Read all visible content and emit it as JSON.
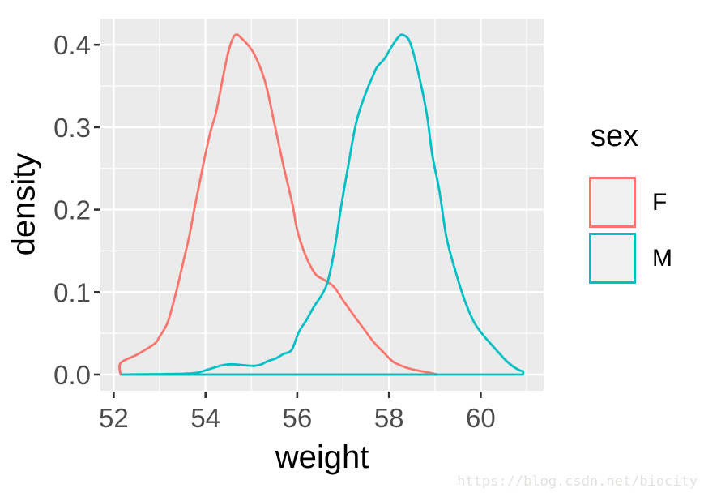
{
  "chart_data": {
    "type": "line",
    "subtype": "density-curves",
    "title": "",
    "x_axis": {
      "label": "weight",
      "tick_labels": [
        "52",
        "54",
        "56",
        "58",
        "60"
      ],
      "tick_values": [
        52,
        54,
        56,
        58,
        60
      ],
      "minor_ticks": [
        53,
        55,
        57,
        59,
        61
      ],
      "range": [
        51.71,
        61.37
      ]
    },
    "y_axis": {
      "label": "density",
      "tick_labels": [
        "0.0",
        "0.1",
        "0.2",
        "0.3",
        "0.4"
      ],
      "tick_values": [
        0,
        0.1,
        0.2,
        0.3,
        0.4
      ],
      "minor_ticks": [
        0.05,
        0.15,
        0.25,
        0.35
      ],
      "range": [
        -0.0197,
        0.4317
      ]
    },
    "legend": {
      "title": "sex",
      "position": "right",
      "entries": [
        {
          "label": "F",
          "color": "#F8766D"
        },
        {
          "label": "M",
          "color": "#00BFC4"
        }
      ]
    },
    "panel": {
      "background": "#EBEBEB",
      "grid_color": "#FFFFFF"
    },
    "tick_color": "#333333",
    "tick_label_color": "#4D4D4D",
    "series": [
      {
        "name": "F",
        "color": "#F8766D",
        "peak": {
          "weight": 54.65,
          "density": 0.41
        },
        "points": [
          [
            52.15,
            0
          ],
          [
            52.15,
            0.014
          ],
          [
            52.5,
            0.024
          ],
          [
            52.88,
            0.037
          ],
          [
            53.0,
            0.046
          ],
          [
            53.18,
            0.064
          ],
          [
            53.35,
            0.098
          ],
          [
            53.5,
            0.133
          ],
          [
            53.65,
            0.169
          ],
          [
            53.76,
            0.202
          ],
          [
            53.88,
            0.235
          ],
          [
            54.0,
            0.268
          ],
          [
            54.12,
            0.297
          ],
          [
            54.23,
            0.318
          ],
          [
            54.4,
            0.366
          ],
          [
            54.52,
            0.396
          ],
          [
            54.65,
            0.412
          ],
          [
            54.8,
            0.407
          ],
          [
            55.05,
            0.39
          ],
          [
            55.3,
            0.355
          ],
          [
            55.5,
            0.305
          ],
          [
            55.7,
            0.253
          ],
          [
            55.89,
            0.208
          ],
          [
            56.0,
            0.175
          ],
          [
            56.17,
            0.146
          ],
          [
            56.38,
            0.123
          ],
          [
            56.55,
            0.116
          ],
          [
            56.67,
            0.112
          ],
          [
            56.82,
            0.105
          ],
          [
            57.0,
            0.09
          ],
          [
            57.23,
            0.072
          ],
          [
            57.47,
            0.054
          ],
          [
            57.67,
            0.039
          ],
          [
            57.88,
            0.027
          ],
          [
            58.08,
            0.016
          ],
          [
            58.3,
            0.01
          ],
          [
            58.53,
            0.006
          ],
          [
            58.9,
            0.002
          ],
          [
            59.05,
            0
          ]
        ]
      },
      {
        "name": "M",
        "color": "#00BFC4",
        "peak": {
          "weight": 58.27,
          "density": 0.41
        },
        "points": [
          [
            52.18,
            0
          ],
          [
            53.0,
            0.0005
          ],
          [
            53.5,
            0.001
          ],
          [
            53.8,
            0.002
          ],
          [
            54.05,
            0.006
          ],
          [
            54.35,
            0.011
          ],
          [
            54.56,
            0.0125
          ],
          [
            54.8,
            0.0115
          ],
          [
            55.05,
            0.0105
          ],
          [
            55.2,
            0.012
          ],
          [
            55.35,
            0.016
          ],
          [
            55.55,
            0.02
          ],
          [
            55.7,
            0.025
          ],
          [
            55.88,
            0.03
          ],
          [
            56.03,
            0.051
          ],
          [
            56.2,
            0.066
          ],
          [
            56.35,
            0.081
          ],
          [
            56.55,
            0.098
          ],
          [
            56.67,
            0.114
          ],
          [
            56.8,
            0.148
          ],
          [
            56.97,
            0.208
          ],
          [
            57.11,
            0.253
          ],
          [
            57.29,
            0.307
          ],
          [
            57.49,
            0.341
          ],
          [
            57.64,
            0.361
          ],
          [
            57.74,
            0.373
          ],
          [
            57.9,
            0.383
          ],
          [
            58.05,
            0.397
          ],
          [
            58.2,
            0.409
          ],
          [
            58.3,
            0.412
          ],
          [
            58.45,
            0.404
          ],
          [
            58.61,
            0.373
          ],
          [
            58.82,
            0.317
          ],
          [
            58.94,
            0.268
          ],
          [
            59.1,
            0.222
          ],
          [
            59.25,
            0.167
          ],
          [
            59.45,
            0.125
          ],
          [
            59.65,
            0.09
          ],
          [
            59.85,
            0.064
          ],
          [
            60.05,
            0.048
          ],
          [
            60.24,
            0.036
          ],
          [
            60.4,
            0.026
          ],
          [
            60.55,
            0.017
          ],
          [
            60.7,
            0.01
          ],
          [
            60.85,
            0.005
          ],
          [
            60.92,
            0.004
          ],
          [
            60.92,
            0
          ]
        ]
      }
    ]
  },
  "watermark": {
    "text": "https://blog.csdn.net/biocity"
  }
}
